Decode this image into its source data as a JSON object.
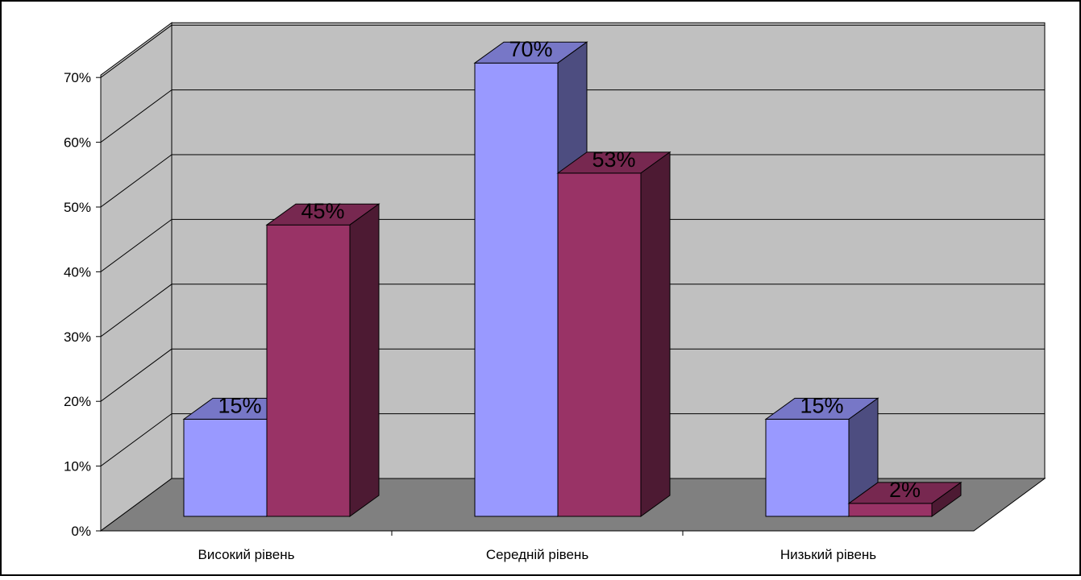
{
  "chart_data": {
    "type": "bar",
    "title": "",
    "xlabel": "",
    "ylabel": "",
    "categories": [
      "Високий рівень",
      "Середній рівень",
      "Низький рівень"
    ],
    "series": [
      {
        "values": [
          15,
          70,
          15
        ],
        "labels": [
          "15%",
          "70%",
          "15%"
        ],
        "color": "#9999FF"
      },
      {
        "values": [
          45,
          53,
          2
        ],
        "labels": [
          "45%",
          "53%",
          "2%"
        ],
        "color": "#993366"
      }
    ],
    "ylim": [
      0,
      70
    ],
    "yticks": [
      "0%",
      "10%",
      "20%",
      "30%",
      "40%",
      "50%",
      "60%",
      "70%"
    ],
    "grid": true,
    "legend": "none",
    "style": "3d-column",
    "colors": {
      "wall": "#C0C0C0",
      "floor": "#808080",
      "frame": "#000000"
    }
  }
}
